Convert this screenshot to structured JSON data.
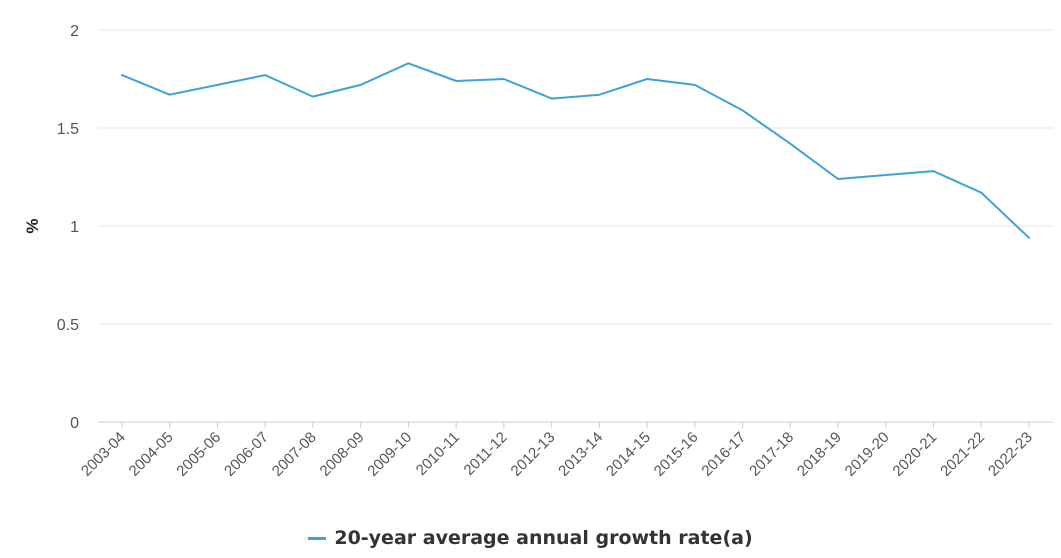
{
  "chart_data": {
    "type": "line",
    "title": "",
    "xlabel": "",
    "ylabel": "%",
    "ylim": [
      0,
      2
    ],
    "yticks": [
      "0",
      "0.5",
      "1",
      "1.5",
      "2"
    ],
    "grid": true,
    "legend_position": "bottom-center",
    "categories": [
      "2003-04",
      "2004-05",
      "2005-06",
      "2006-07",
      "2007-08",
      "2008-09",
      "2009-10",
      "2010-11",
      "2011-12",
      "2012-13",
      "2013-14",
      "2014-15",
      "2015-16",
      "2016-17",
      "2017-18",
      "2018-19",
      "2019-20",
      "2020-21",
      "2021-22",
      "2022-23"
    ],
    "series": [
      {
        "name": "20-year average annual growth rate(a)",
        "color": "#3fa2d4",
        "values": [
          1.77,
          1.67,
          1.72,
          1.77,
          1.66,
          1.72,
          1.83,
          1.74,
          1.75,
          1.65,
          1.67,
          1.75,
          1.72,
          1.59,
          1.42,
          1.24,
          1.26,
          1.28,
          1.17,
          0.94
        ]
      }
    ]
  }
}
